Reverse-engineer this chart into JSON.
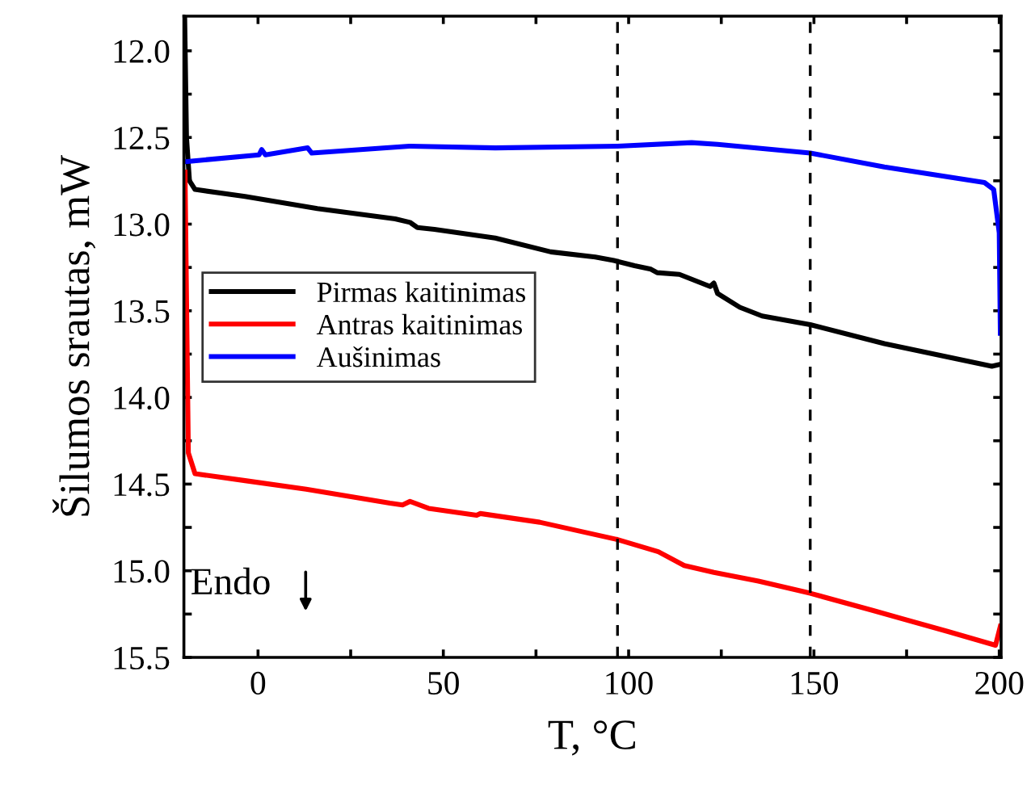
{
  "chart_data": {
    "type": "line",
    "xlabel": "T, °C",
    "ylabel": "Šilumos srautas, mW",
    "xlim": [
      -20,
      200.5
    ],
    "ylim": [
      15.5,
      11.8
    ],
    "xticks": [
      0,
      {
        "value": 25,
        "label": null
      },
      50,
      {
        "value": 75,
        "label": null
      },
      100,
      {
        "value": 125,
        "label": null
      },
      150,
      {
        "value": 175,
        "label": null
      },
      200
    ],
    "yticks": [
      {
        "value": 12.0,
        "label": "12.0"
      },
      {
        "value": 12.25,
        "label": null
      },
      12.5,
      {
        "value": 12.75,
        "label": null
      },
      {
        "value": 13.0,
        "label": "13.0"
      },
      {
        "value": 13.25,
        "label": null
      },
      13.5,
      {
        "value": 13.75,
        "label": null
      },
      {
        "value": 14.0,
        "label": "14.0"
      },
      {
        "value": 14.25,
        "label": null
      },
      14.5,
      {
        "value": 14.75,
        "label": null
      },
      {
        "value": 15.0,
        "label": "15.0"
      },
      {
        "value": 15.25,
        "label": null
      },
      15.5
    ],
    "grid": false,
    "legend": "center left",
    "marker": "none",
    "line_style": "solid",
    "ref_lines": [
      {
        "axis": "x",
        "value": 97,
        "label": null,
        "color": "#000000",
        "line_style": "dashed"
      },
      {
        "axis": "x",
        "value": 149,
        "label": null,
        "color": "#000000",
        "line_style": "dashed"
      }
    ],
    "annotations": [
      "Endo"
    ],
    "series": [
      {
        "name": "Pirmas kaitinimas",
        "color": "#000000",
        "x": [
          -19.8,
          -19.3,
          -18.5,
          -17,
          -3.5,
          16,
          37,
          41,
          43,
          47.6,
          64,
          79,
          91,
          96,
          101.6,
          106,
          107.7,
          113.7,
          122,
          123,
          124,
          130,
          136,
          149,
          169,
          198,
          200
        ],
        "values": [
          11.8,
          12.5,
          12.75,
          12.8,
          12.84,
          12.91,
          12.97,
          12.99,
          13.02,
          13.03,
          13.08,
          13.16,
          13.19,
          13.21,
          13.24,
          13.26,
          13.28,
          13.29,
          13.36,
          13.34,
          13.4,
          13.48,
          13.53,
          13.58,
          13.69,
          13.82,
          13.81
        ]
      },
      {
        "name": "Antras kaitinimas",
        "color": "#ff0000",
        "x": [
          -19.7,
          -18.8,
          -17,
          -3.5,
          13,
          35.6,
          39,
          41,
          46,
          59,
          60,
          76,
          97,
          108,
          115,
          123,
          135,
          149,
          166,
          186,
          199,
          200.3
        ],
        "values": [
          12.7,
          14.32,
          14.44,
          14.48,
          14.53,
          14.61,
          14.62,
          14.6,
          14.64,
          14.68,
          14.67,
          14.72,
          14.82,
          14.89,
          14.97,
          15.01,
          15.06,
          15.13,
          15.23,
          15.35,
          15.43,
          15.32
        ]
      },
      {
        "name": "Aušinimas",
        "color": "#0000ff",
        "x": [
          -19.7,
          0.3,
          1,
          2,
          13.4,
          14.5,
          40.8,
          64,
          97,
          117,
          124,
          149,
          169,
          196,
          198.5,
          200,
          200.3
        ],
        "values": [
          12.64,
          12.6,
          12.57,
          12.6,
          12.56,
          12.59,
          12.55,
          12.56,
          12.55,
          12.53,
          12.54,
          12.59,
          12.67,
          12.76,
          12.8,
          13.05,
          13.63
        ]
      }
    ]
  }
}
